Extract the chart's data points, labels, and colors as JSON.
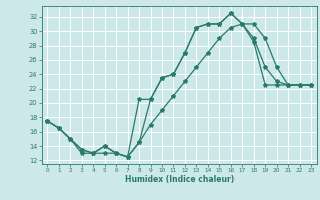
{
  "bg_color": "#cde8e8",
  "grid_color": "#ffffff",
  "line_color": "#2a7a6a",
  "xlabel": "Humidex (Indice chaleur)",
  "ylim": [
    11.5,
    33.5
  ],
  "xlim": [
    -0.5,
    23.5
  ],
  "yticks": [
    12,
    14,
    16,
    18,
    20,
    22,
    24,
    26,
    28,
    30,
    32
  ],
  "xticks": [
    0,
    1,
    2,
    3,
    4,
    5,
    6,
    7,
    8,
    9,
    10,
    11,
    12,
    13,
    14,
    15,
    16,
    17,
    18,
    19,
    20,
    21,
    22,
    23
  ],
  "line1_x": [
    0,
    1,
    2,
    3,
    4,
    5,
    6,
    7,
    8,
    9,
    10,
    11,
    12,
    13,
    14,
    15,
    16,
    17,
    18,
    19,
    20,
    21,
    22,
    23
  ],
  "line1_y": [
    17.5,
    16.5,
    15.0,
    13.5,
    13.0,
    14.0,
    13.0,
    12.5,
    14.5,
    20.5,
    23.5,
    24.0,
    27.0,
    30.5,
    31.0,
    31.0,
    32.5,
    31.0,
    31.0,
    29.0,
    25.0,
    22.5,
    22.5,
    22.5
  ],
  "line2_x": [
    0,
    1,
    2,
    3,
    4,
    5,
    6,
    7,
    8,
    9,
    10,
    11,
    12,
    13,
    14,
    15,
    16,
    17,
    18,
    19,
    20,
    21,
    22,
    23
  ],
  "line2_y": [
    17.5,
    16.5,
    15.0,
    13.5,
    13.0,
    14.0,
    13.0,
    12.5,
    20.5,
    20.5,
    23.5,
    24.0,
    27.0,
    30.5,
    31.0,
    31.0,
    32.5,
    31.0,
    28.5,
    22.5,
    22.5,
    22.5,
    22.5,
    22.5
  ],
  "line3_x": [
    0,
    1,
    2,
    3,
    4,
    5,
    6,
    7,
    8,
    9,
    10,
    11,
    12,
    13,
    14,
    15,
    16,
    17,
    18,
    19,
    20,
    21,
    22,
    23
  ],
  "line3_y": [
    17.5,
    16.5,
    15.0,
    13.0,
    13.0,
    13.0,
    13.0,
    12.5,
    14.5,
    17.0,
    19.0,
    21.0,
    23.0,
    25.0,
    27.0,
    29.0,
    30.5,
    31.0,
    29.0,
    25.0,
    23.0,
    22.5,
    22.5,
    22.5
  ]
}
